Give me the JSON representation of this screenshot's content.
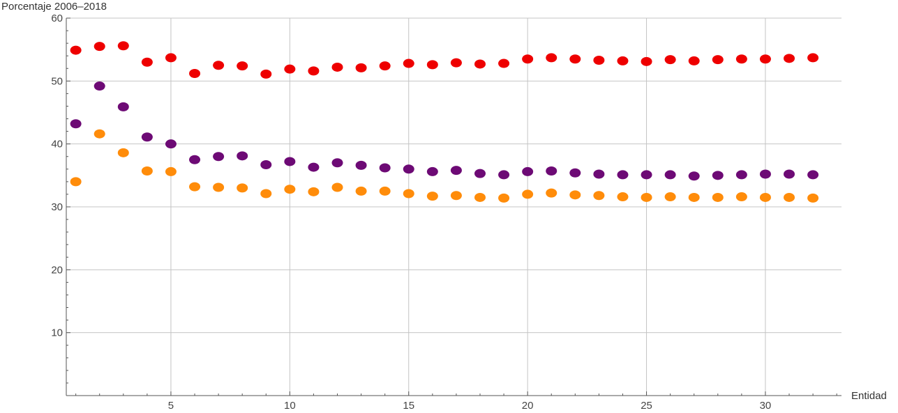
{
  "chart_data": {
    "type": "scatter",
    "ylabel": "Porcentaje 2006–2018",
    "xlabel": "Entidad",
    "xlim": [
      0.6,
      33.2
    ],
    "ylim": [
      0,
      60
    ],
    "x_ticks": [
      5,
      10,
      15,
      20,
      25,
      30
    ],
    "y_ticks": [
      10,
      20,
      30,
      40,
      50,
      60
    ],
    "grid": true,
    "x": [
      1,
      2,
      3,
      4,
      5,
      6,
      7,
      8,
      9,
      10,
      11,
      12,
      13,
      14,
      15,
      16,
      17,
      18,
      19,
      20,
      21,
      22,
      23,
      24,
      25,
      26,
      27,
      28,
      29,
      30,
      31,
      32
    ],
    "series": [
      {
        "color": "#ee0000",
        "values": [
          54.9,
          55.5,
          55.6,
          53.0,
          53.7,
          51.2,
          52.5,
          52.4,
          51.1,
          51.9,
          51.6,
          52.2,
          52.1,
          52.4,
          52.8,
          52.6,
          52.9,
          52.7,
          52.8,
          53.5,
          53.7,
          53.5,
          53.3,
          53.2,
          53.1,
          53.4,
          53.2,
          53.4,
          53.5,
          53.5,
          53.6,
          53.7
        ]
      },
      {
        "color": "#6d0a75",
        "values": [
          43.2,
          49.2,
          45.9,
          41.1,
          40.0,
          37.5,
          38.0,
          38.1,
          36.7,
          37.2,
          36.3,
          37.0,
          36.6,
          36.2,
          36.0,
          35.6,
          35.8,
          35.3,
          35.1,
          35.6,
          35.7,
          35.4,
          35.2,
          35.1,
          35.1,
          35.1,
          34.9,
          35.0,
          35.1,
          35.2,
          35.2,
          35.1
        ]
      },
      {
        "color": "#ff8c0a",
        "values": [
          34.0,
          41.6,
          38.6,
          35.7,
          35.6,
          33.2,
          33.1,
          33.0,
          32.1,
          32.8,
          32.4,
          33.1,
          32.5,
          32.5,
          32.1,
          31.7,
          31.8,
          31.5,
          31.4,
          32.0,
          32.2,
          31.9,
          31.8,
          31.6,
          31.5,
          31.6,
          31.5,
          31.5,
          31.6,
          31.5,
          31.5,
          31.4
        ]
      }
    ]
  }
}
